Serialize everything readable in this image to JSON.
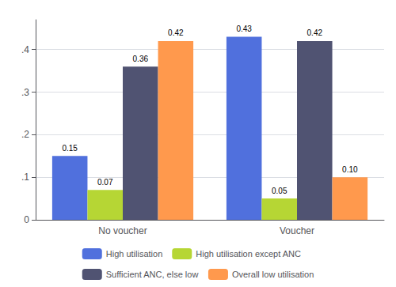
{
  "chart_data": {
    "type": "bar",
    "categories": [
      "No voucher",
      "Voucher"
    ],
    "series": [
      {
        "name": "High utilisation",
        "values": [
          0.15,
          0.43
        ],
        "value_labels": [
          "0.15",
          "0.43"
        ]
      },
      {
        "name": "High utilisation except ANC",
        "values": [
          0.07,
          0.05
        ],
        "value_labels": [
          "0.07",
          "0.05"
        ]
      },
      {
        "name": "Sufficient ANC, else low",
        "values": [
          0.36,
          0.42
        ],
        "value_labels": [
          "0.36",
          "0.42"
        ]
      },
      {
        "name": "Overall low utilisation",
        "values": [
          0.42,
          0.1
        ],
        "value_labels": [
          "0.42",
          "0.10"
        ]
      }
    ],
    "ylim": [
      0,
      0.47
    ],
    "yticks": [
      0,
      {
        "value": 0.1,
        "label": ".1"
      },
      {
        "value": 0.2,
        "label": ".2"
      },
      {
        "value": 0.3,
        "label": ".3"
      },
      {
        "value": 0.4,
        "label": ".4"
      }
    ],
    "grid": true,
    "legend": "bottom",
    "data_labels": true
  }
}
